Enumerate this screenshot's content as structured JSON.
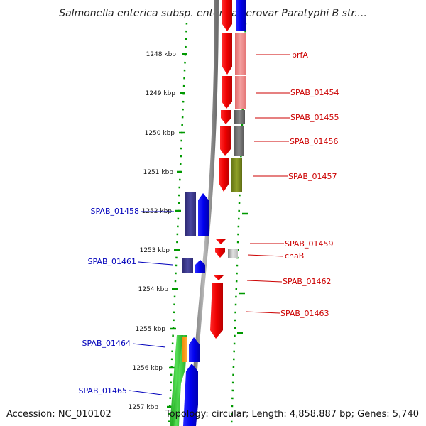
{
  "title": "Salmonella enterica subsp. enterica serovar Paratyphi B str....",
  "footer": {
    "accession": "Accession: NC_010102",
    "summary": "Topology: circular; Length: 4,858,887 bp; Genes: 5,740"
  },
  "ticks": [
    "1248 kbp",
    "1249 kbp",
    "1250 kbp",
    "1251 kbp",
    "1252 kbp",
    "1253 kbp",
    "1254 kbp",
    "1255 kbp",
    "1256 kbp",
    "1257 kbp"
  ],
  "genes_right": [
    "prfA",
    "SPAB_01454",
    "SPAB_01455",
    "SPAB_01456",
    "SPAB_01457",
    "SPAB_01459",
    "chaB",
    "SPAB_01462",
    "SPAB_01463"
  ],
  "genes_left": [
    "SPAB_01458",
    "SPAB_01461",
    "SPAB_01464",
    "SPAB_01465"
  ],
  "colors": {
    "forward": "#ff0000",
    "reverse": "#0000ff",
    "reverse_dark": "#3d3a8c",
    "salmon": "#f08080",
    "grey": "#666666",
    "olive": "#7a8a1a",
    "green": "#33cc33",
    "orange": "#ff9900",
    "dots": "#009900",
    "backbone": "#808080"
  }
}
